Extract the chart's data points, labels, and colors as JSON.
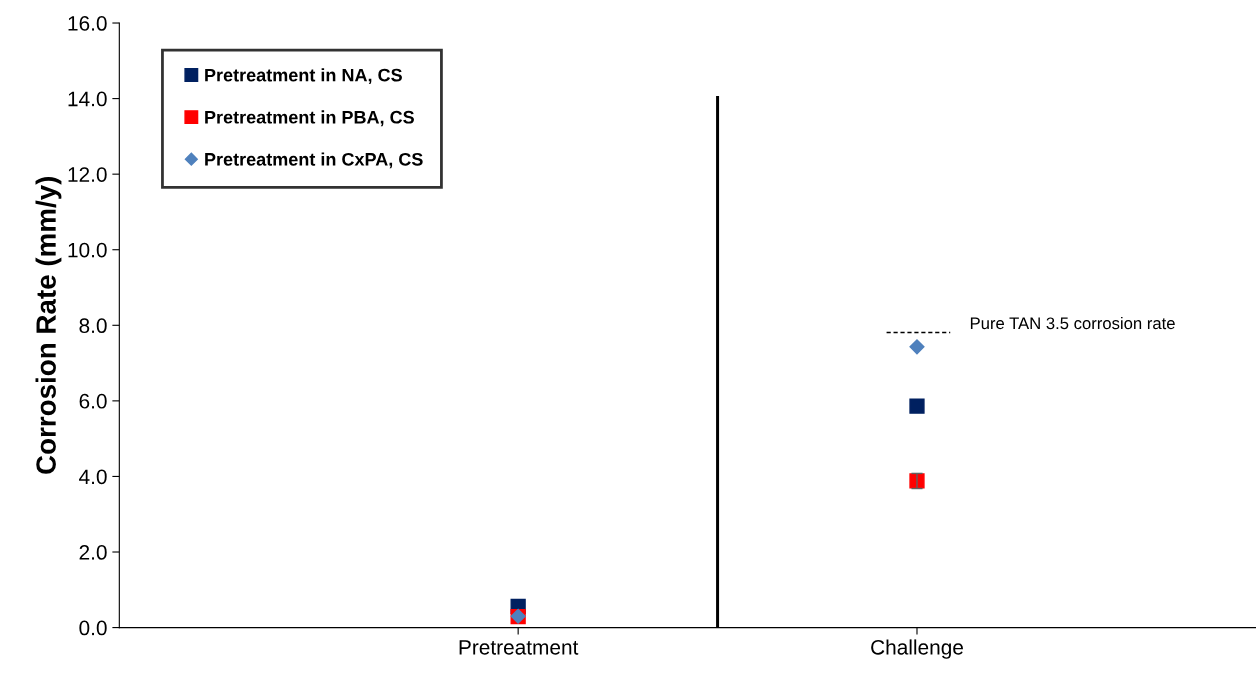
{
  "chart_data": {
    "type": "scatter",
    "ylabel": "Corrosion Rate (mm/y)",
    "categories": [
      null,
      null,
      "Pretreatment",
      null,
      "Challenge",
      null
    ],
    "series": [
      {
        "name": "Pretreatment in NA, CS",
        "color": "#002060",
        "values": [
          null,
          null,
          0.56,
          null,
          5.86,
          null
        ],
        "marker": "square"
      },
      {
        "name": "Pretreatment in PBA, CS",
        "color": "#ff0000",
        "values": [
          null,
          null,
          0.29,
          null,
          3.88,
          null
        ],
        "marker": "square",
        "errors": [
          null,
          null,
          null,
          null,
          0.2,
          null
        ]
      },
      {
        "name": "Pretreatment in CxPA, CS",
        "color": "#4f81bd",
        "values": [
          null,
          null,
          0.3,
          null,
          7.43,
          null
        ],
        "marker": "diamond"
      },
      {
        "type": "bar",
        "color": "#000000",
        "values": [
          null,
          null,
          null,
          14.07,
          null,
          null
        ]
      }
    ],
    "ref_lines": [
      {
        "axis": "y",
        "value": 7.81,
        "label": "Pure TAN 3.5 corrosion rate",
        "line_style": "dashed",
        "color": "#000000"
      }
    ],
    "ylim": [
      0,
      16
    ],
    "yticks": [
      {
        "value": 0,
        "label": "0.0"
      },
      {
        "value": 2,
        "label": "2.0"
      },
      {
        "value": 4,
        "label": "4.0"
      },
      {
        "value": 6,
        "label": "6.0"
      },
      {
        "value": 8,
        "label": "8.0"
      },
      {
        "value": 10,
        "label": "10.0"
      },
      {
        "value": 12,
        "label": "12.0"
      },
      {
        "value": 14,
        "label": "14.0"
      },
      {
        "value": 16,
        "label": "16.0"
      }
    ],
    "legend": "top left",
    "grid": false
  }
}
